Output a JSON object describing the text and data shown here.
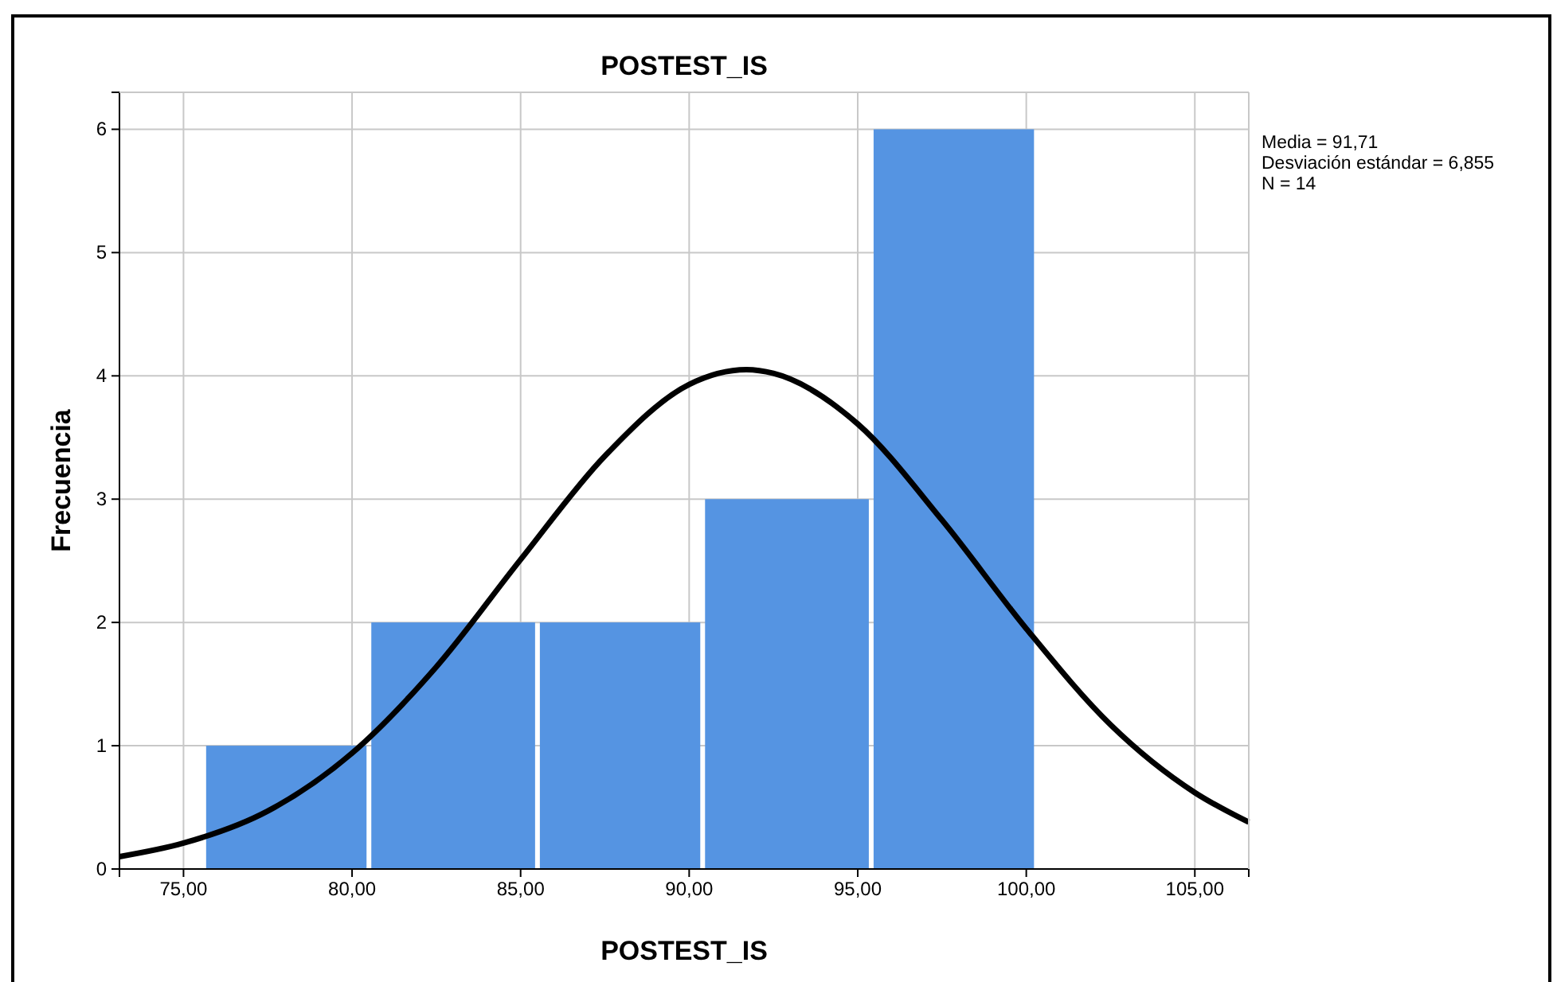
{
  "chart_data": {
    "type": "histogram",
    "title": "POSTEST_IS",
    "xlabel": "POSTEST_IS",
    "ylabel": "Frecuencia",
    "bins": [
      75.6,
      80.5,
      85.5,
      90.4,
      95.4,
      100.3
    ],
    "values": [
      1,
      2,
      2,
      3,
      6
    ],
    "color": "#5594e2",
    "series": [
      {
        "type": "line",
        "color": "#000000",
        "x": [
          73.1,
          75,
          77.5,
          80,
          82.5,
          85,
          87.5,
          90,
          91.7,
          92.5,
          95,
          97.5,
          100,
          102.5,
          105,
          106.6
        ],
        "values": [
          0.1,
          0.21,
          0.47,
          0.94,
          1.64,
          2.51,
          3.35,
          3.93,
          4.05,
          4.02,
          3.61,
          2.83,
          1.95,
          1.17,
          0.62,
          0.38
        ]
      }
    ],
    "xlim": [
      73.1,
      106.6
    ],
    "ylim": [
      0,
      6.3
    ],
    "xticks": [
      {
        "value": 75,
        "label": "75,00"
      },
      {
        "value": 80,
        "label": "80,00"
      },
      {
        "value": 85,
        "label": "85,00"
      },
      {
        "value": 90,
        "label": "90,00"
      },
      {
        "value": 95,
        "label": "95,00"
      },
      {
        "value": 100,
        "label": "100,00"
      },
      {
        "value": 105,
        "label": "105,00"
      }
    ],
    "yticks": [
      0,
      1,
      2,
      3,
      4,
      5,
      6
    ],
    "grid": true,
    "annotations": [
      "Media = 91,71",
      "Desviación estándar = 6,855",
      "N = 14"
    ]
  }
}
